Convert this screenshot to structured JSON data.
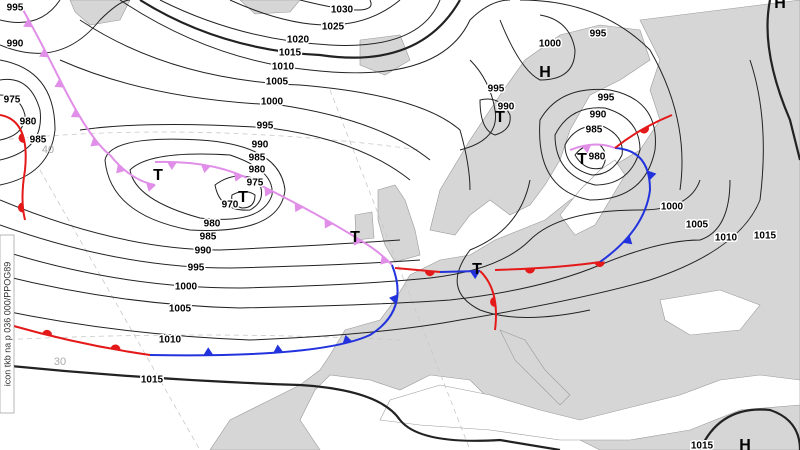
{
  "map": {
    "isobar_labels": [
      "995",
      "990",
      "975",
      "980",
      "985",
      "1030",
      "1025",
      "1020",
      "1015",
      "1010",
      "1005",
      "1000",
      "995",
      "990",
      "985",
      "980",
      "975",
      "970",
      "980",
      "985",
      "990",
      "995",
      "1000",
      "1005",
      "1010",
      "1015",
      "1000",
      "995",
      "995",
      "990",
      "995",
      "990",
      "985",
      "980",
      "1000",
      "1005",
      "1010",
      "1015",
      "1015"
    ],
    "centers": [
      "H",
      "H",
      "H",
      "T",
      "T",
      "T",
      "T",
      "T",
      "T"
    ],
    "latitude_labels": [
      "40",
      "30"
    ],
    "side_text": "icon tkb na p 036 000/PPOG89"
  }
}
